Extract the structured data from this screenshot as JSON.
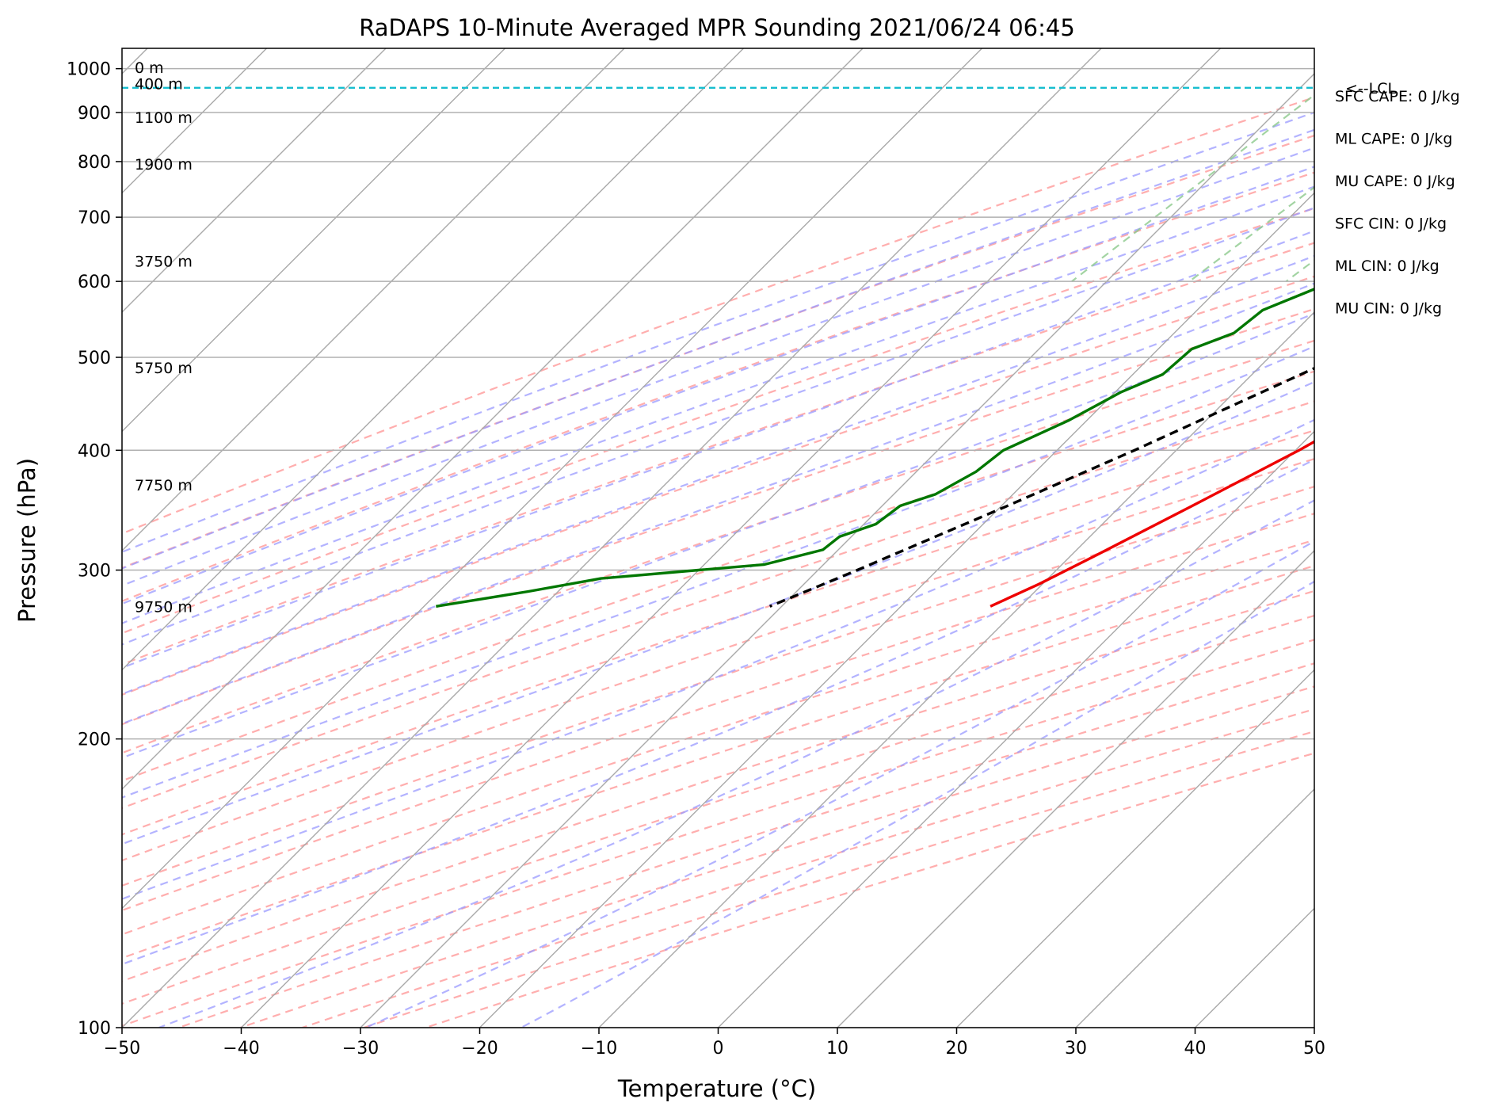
{
  "title": "RaDAPS 10-Minute Averaged MPR Sounding 2021/06/24 06:45",
  "chart_data": {
    "type": "skew-t",
    "title": "RaDAPS 10-Minute Averaged MPR Sounding 2021/06/24 06:45",
    "xlabel": "Temperature (°C)",
    "ylabel": "Pressure (hPa)",
    "xlim": [
      -50,
      50
    ],
    "ylim": [
      1050,
      100
    ],
    "y_scale": "log",
    "x_ticks": [
      -50,
      -40,
      -30,
      -20,
      -10,
      0,
      10,
      20,
      30,
      40,
      50
    ],
    "x_tick_labels": [
      "−50",
      "−40",
      "−30",
      "−20",
      "−10",
      "0",
      "10",
      "20",
      "30",
      "40",
      "50"
    ],
    "y_ticks": [
      1000,
      900,
      800,
      700,
      600,
      500,
      400,
      300,
      200,
      100
    ],
    "y_tick_labels": [
      "1000",
      "900",
      "800",
      "700",
      "600",
      "500",
      "400",
      "300",
      "200",
      "100"
    ],
    "grid": true,
    "skew_degrees": 45,
    "background_lines": {
      "isotherms_color": "#a9a9a9",
      "dry_adiabats_color": "#ff9a9a",
      "moist_adiabats_color": "#9a9aff",
      "mixing_ratio_color": "#8cc98c"
    },
    "series": [
      {
        "name": "temperature",
        "color": "#ee0000",
        "points": [
          {
            "p": 1000,
            "t": 20.3
          },
          {
            "p": 990,
            "t": 23.0
          },
          {
            "p": 980,
            "t": 24.6
          },
          {
            "p": 965,
            "t": 25.2
          },
          {
            "p": 950,
            "t": 25.0
          },
          {
            "p": 920,
            "t": 22.5
          },
          {
            "p": 880,
            "t": 18.2
          },
          {
            "p": 860,
            "t": 17.8
          },
          {
            "p": 840,
            "t": 17.2
          },
          {
            "p": 820,
            "t": 16.2
          },
          {
            "p": 790,
            "t": 16.2
          },
          {
            "p": 750,
            "t": 14.7
          },
          {
            "p": 700,
            "t": 12.5
          },
          {
            "p": 650,
            "t": 10.6
          },
          {
            "p": 600,
            "t": 9.3
          },
          {
            "p": 550,
            "t": 8.0
          },
          {
            "p": 500,
            "t": 6.0
          },
          {
            "p": 450,
            "t": 3.5
          },
          {
            "p": 400,
            "t": 0.3
          },
          {
            "p": 350,
            "t": -4.0
          },
          {
            "p": 310,
            "t": -8.0
          },
          {
            "p": 290,
            "t": -10.3
          },
          {
            "p": 275,
            "t": -12.5
          }
        ]
      },
      {
        "name": "dewpoint",
        "color": "#007700",
        "points": [
          {
            "p": 995,
            "t": 17.3
          },
          {
            "p": 985,
            "t": 16.3
          },
          {
            "p": 975,
            "t": 13.0
          },
          {
            "p": 965,
            "t": 10.5
          },
          {
            "p": 950,
            "t": 7.9
          },
          {
            "p": 935,
            "t": 6.8
          },
          {
            "p": 920,
            "t": 6.2
          },
          {
            "p": 900,
            "t": 5.3
          },
          {
            "p": 885,
            "t": 3.8
          },
          {
            "p": 860,
            "t": 2.6
          },
          {
            "p": 840,
            "t": 1.0
          },
          {
            "p": 820,
            "t": 0.0
          },
          {
            "p": 800,
            "t": -1.7
          },
          {
            "p": 770,
            "t": -5.0
          },
          {
            "p": 750,
            "t": -3.8
          },
          {
            "p": 730,
            "t": -3.8
          },
          {
            "p": 700,
            "t": -3.0
          },
          {
            "p": 680,
            "t": -4.0
          },
          {
            "p": 650,
            "t": -7.0
          },
          {
            "p": 620,
            "t": -10.0
          },
          {
            "p": 600,
            "t": -11.0
          },
          {
            "p": 560,
            "t": -14.5
          },
          {
            "p": 530,
            "t": -15.0
          },
          {
            "p": 510,
            "t": -17.2
          },
          {
            "p": 480,
            "t": -17.5
          },
          {
            "p": 460,
            "t": -19.5
          },
          {
            "p": 430,
            "t": -21.5
          },
          {
            "p": 400,
            "t": -24.5
          },
          {
            "p": 380,
            "t": -25.0
          },
          {
            "p": 360,
            "t": -26.5
          },
          {
            "p": 350,
            "t": -28.5
          },
          {
            "p": 335,
            "t": -29.0
          },
          {
            "p": 325,
            "t": -31.0
          },
          {
            "p": 315,
            "t": -31.3
          },
          {
            "p": 304,
            "t": -35.0
          },
          {
            "p": 300,
            "t": -40.0
          },
          {
            "p": 294,
            "t": -47.5
          },
          {
            "p": 285,
            "t": -52.5
          },
          {
            "p": 275,
            "t": -59.0
          }
        ]
      },
      {
        "name": "parcel",
        "color": "#000000",
        "dashed": true,
        "points": [
          {
            "p": 1000,
            "t": 20.4
          },
          {
            "p": 980,
            "t": 18.2
          },
          {
            "p": 955,
            "t": 17.2
          },
          {
            "p": 900,
            "t": 15.4
          },
          {
            "p": 800,
            "t": 11.8
          },
          {
            "p": 700,
            "t": 7.6
          },
          {
            "p": 600,
            "t": 2.5
          },
          {
            "p": 500,
            "t": -4.2
          },
          {
            "p": 400,
            "t": -13.5
          },
          {
            "p": 350,
            "t": -19.5
          },
          {
            "p": 300,
            "t": -26.7
          },
          {
            "p": 275,
            "t": -31.0
          }
        ]
      }
    ],
    "lcl": {
      "pressure": 955,
      "label": "<--LCL",
      "color": "#17becf"
    },
    "height_labels": [
      {
        "p": 275,
        "text": "9750 m"
      },
      {
        "p": 368,
        "text": "7750 m"
      },
      {
        "p": 488,
        "text": "5750 m"
      },
      {
        "p": 630,
        "text": "3750 m"
      },
      {
        "p": 795,
        "text": "1900 m"
      },
      {
        "p": 890,
        "text": "1100 m"
      },
      {
        "p": 965,
        "text": "400 m"
      },
      {
        "p": 1003,
        "text": "0 m"
      }
    ],
    "stats": [
      "SFC CAPE: 0 J/kg",
      "ML CAPE: 0 J/kg",
      "MU CAPE: 0 J/kg",
      "SFC CIN: 0 J/kg",
      "ML CIN: 0 J/kg",
      "MU CIN: 0 J/kg"
    ]
  }
}
